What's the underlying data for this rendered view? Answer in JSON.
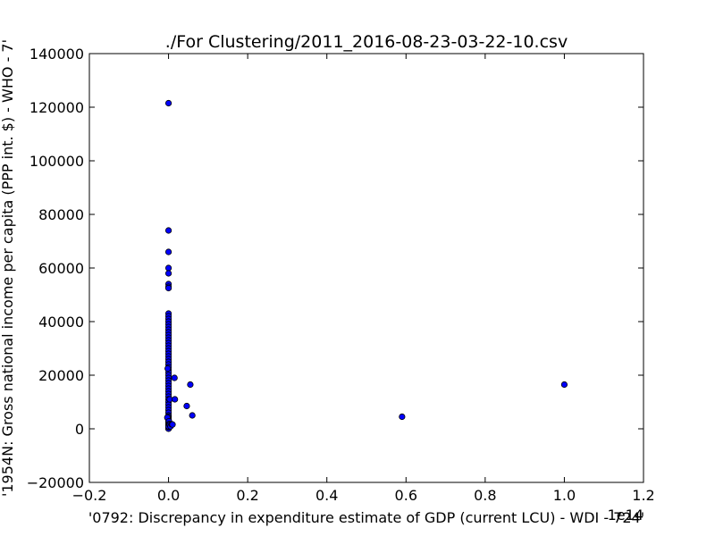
{
  "chart_data": {
    "type": "scatter",
    "title": "./For Clustering/2011_2016-08-23-03-22-10.csv",
    "xlabel": "'0792: Discrepancy in expenditure estimate of GDP  (current LCU) - WDI - 724'",
    "ylabel": "'1954N: Gross national income per capita (PPP int. $) - WHO - 7'",
    "x_offset_label": "1e14",
    "xlim": [
      -0.2,
      1.2
    ],
    "ylim": [
      -20000,
      140000
    ],
    "xticks": [
      -0.2,
      0.0,
      0.2,
      0.4,
      0.6,
      0.8,
      1.0,
      1.2
    ],
    "xtick_labels": [
      "−0.2",
      "0.0",
      "0.2",
      "0.4",
      "0.6",
      "0.8",
      "1.0",
      "1.2"
    ],
    "yticks": [
      -20000,
      0,
      20000,
      40000,
      60000,
      80000,
      100000,
      120000,
      140000
    ],
    "ytick_labels": [
      "−20000",
      "0",
      "20000",
      "40000",
      "60000",
      "80000",
      "100000",
      "120000",
      "140000"
    ],
    "marker_color": "#0000ff",
    "grid": false,
    "series": [
      {
        "name": "points",
        "x": [
          0.0,
          0.0,
          0.0,
          0.0,
          0.0,
          0.0,
          0.0,
          0.0,
          0.0,
          0.0,
          0.0,
          0.0,
          0.0,
          0.0,
          0.0,
          0.0,
          0.0,
          0.0,
          0.0,
          0.0,
          0.0,
          0.0,
          0.0,
          0.0,
          0.0,
          0.0,
          0.0,
          0.0,
          0.0,
          0.0,
          0.0,
          0.0,
          0.0,
          0.0,
          0.0,
          0.0,
          0.0,
          0.0,
          0.0,
          0.0,
          0.0,
          0.0,
          0.0,
          0.0,
          0.0,
          0.0,
          0.0,
          0.0,
          0.0,
          0.0,
          0.0,
          0.0,
          0.0,
          0.0,
          0.0,
          0.0,
          0.0,
          0.0,
          0.0,
          0.0,
          0.0,
          0.0,
          0.0,
          0.0,
          0.0,
          -0.002,
          -0.003,
          0.001,
          0.002,
          0.003,
          0.003,
          0.005,
          0.008,
          0.01,
          0.015,
          0.016,
          0.046,
          0.055,
          0.06,
          0.59,
          1.0
        ],
        "y": [
          121500,
          74000,
          66000,
          60000,
          58000,
          54000,
          53000,
          52500,
          43000,
          42000,
          41000,
          40000,
          39000,
          38000,
          37000,
          36000,
          35000,
          34000,
          33000,
          32000,
          31000,
          30000,
          29000,
          28000,
          27000,
          26000,
          25000,
          24000,
          23000,
          22000,
          21000,
          20000,
          19000,
          18000,
          17000,
          16000,
          15000,
          14000,
          13000,
          12000,
          11000,
          10000,
          9000,
          8000,
          7000,
          6000,
          5000,
          4500,
          4000,
          3500,
          3000,
          2500,
          2000,
          1500,
          1200,
          1000,
          800,
          600,
          400,
          300,
          200,
          100,
          50,
          700,
          900,
          22500,
          4200,
          2800,
          1800,
          1400,
          11000,
          900,
          1700,
          1600,
          19000,
          11000,
          8500,
          16500,
          5000,
          4500,
          16500
        ]
      }
    ]
  }
}
